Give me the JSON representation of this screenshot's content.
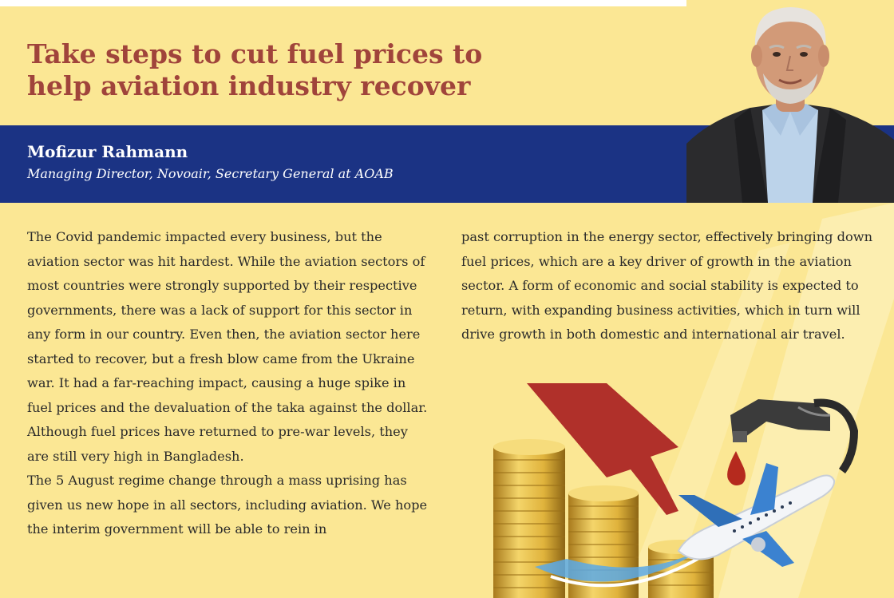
{
  "article": {
    "headline_line1": "Take steps to cut fuel prices to",
    "headline_line2": "help aviation industry recover"
  },
  "author": {
    "name": "Mofizur Rahmann",
    "title": "Managing Director, Novoair, Secretary General at AOAB"
  },
  "body": {
    "left_paragraph_1": "The Covid pandemic impacted every business, but the aviation sector was hit hardest. While the aviation sectors of most countries were strongly supported by their respective governments, there was a lack of support for this sector in any form in our country. Even then, the aviation sector here started to recover, but a fresh blow came from the Ukraine war. It had a far-reaching impact, causing a huge spike in fuel prices and the devaluation of the taka against the dollar. Although fuel prices have returned to pre-war levels, they are still very high in Bangladesh.",
    "left_paragraph_2": "The 5 August regime change through a mass uprising has given us new hope in all sectors, including aviation. We hope the interim government will be able to rein in",
    "right_paragraph_1": "past corruption in the energy sector, effectively bringing down fuel prices, which are a key driver of growth in the aviation sector. A form of economic and social stability is expected to return, with expanding business activities, which in turn will drive growth in both domestic and international air travel."
  },
  "colors": {
    "background": "#fbe794",
    "headline": "#a0443b",
    "band": "#1b3384",
    "arrow": "#b0302a",
    "gold": "#e0b33c"
  },
  "icons": {
    "portrait": "author-portrait",
    "illustration": "coins-arrow-airplane-fuel-nozzle"
  }
}
